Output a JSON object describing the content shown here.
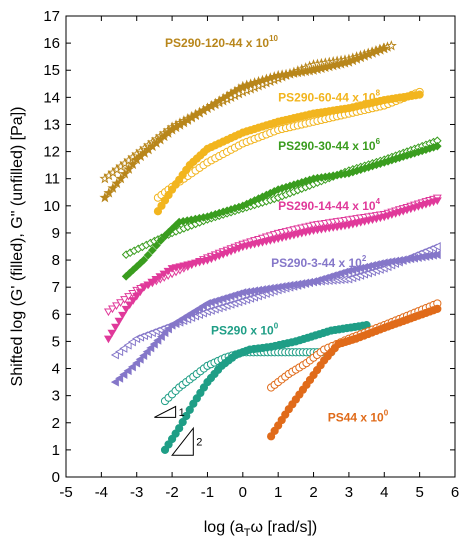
{
  "chart_data": {
    "type": "scatter",
    "xlabel_prefix": "log (a",
    "xlabel_sub": "T",
    "xlabel_suffix": "ω [rad/s])",
    "ylabel": "Shifted log (G' (filled), G\" (unfilled) [Pa])",
    "xlim": [
      -5,
      6
    ],
    "ylim": [
      0,
      17
    ],
    "x_ticks": [
      -5,
      -4,
      -3,
      -2,
      -1,
      0,
      1,
      2,
      3,
      4,
      5,
      6
    ],
    "y_ticks": [
      0,
      1,
      2,
      3,
      4,
      5,
      6,
      7,
      8,
      9,
      10,
      11,
      12,
      13,
      14,
      15,
      16,
      17
    ],
    "grid": false,
    "series": [
      {
        "name": "PS290-120-44",
        "factor_base": "x 10",
        "factor_exp": "10",
        "color": "#b8861b",
        "marker": "star",
        "label_x": -2.2,
        "label_y": 16.0,
        "gp": [
          [
            -3.9,
            10.3
          ],
          [
            -3.0,
            11.7
          ],
          [
            -2.0,
            12.8
          ],
          [
            -1.0,
            13.6
          ],
          [
            0.0,
            14.4
          ],
          [
            1.0,
            14.8
          ],
          [
            2.0,
            15.0
          ],
          [
            3.0,
            15.3
          ],
          [
            4.0,
            15.8
          ]
        ],
        "gpp": [
          [
            -3.9,
            11.0
          ],
          [
            -3.0,
            11.9
          ],
          [
            -2.0,
            12.9
          ],
          [
            -1.0,
            13.6
          ],
          [
            0.0,
            14.2
          ],
          [
            1.0,
            14.7
          ],
          [
            2.0,
            15.2
          ],
          [
            3.0,
            15.4
          ],
          [
            4.2,
            15.9
          ]
        ]
      },
      {
        "name": "PS290-60-44",
        "factor_base": "x 10",
        "factor_exp": "8",
        "color": "#f2b51f",
        "marker": "circle",
        "label_x": 1.0,
        "label_y": 14.0,
        "gp": [
          [
            -2.4,
            9.8
          ],
          [
            -2.0,
            10.6
          ],
          [
            -1.5,
            11.5
          ],
          [
            -1.0,
            12.1
          ],
          [
            0.0,
            12.7
          ],
          [
            1.0,
            13.1
          ],
          [
            2.0,
            13.4
          ],
          [
            3.0,
            13.6
          ],
          [
            4.0,
            13.9
          ],
          [
            5.0,
            14.1
          ]
        ],
        "gpp": [
          [
            -2.4,
            10.3
          ],
          [
            -2.0,
            10.7
          ],
          [
            -1.0,
            11.6
          ],
          [
            0.0,
            12.3
          ],
          [
            1.0,
            12.8
          ],
          [
            2.0,
            13.1
          ],
          [
            3.0,
            13.4
          ],
          [
            4.0,
            13.7
          ],
          [
            5.0,
            14.2
          ]
        ]
      },
      {
        "name": "PS290-30-44",
        "factor_base": "x 10",
        "factor_exp": "6",
        "color": "#3a9d1f",
        "marker": "diamond",
        "label_x": 1.0,
        "label_y": 12.2,
        "gp": [
          [
            -3.3,
            7.4
          ],
          [
            -2.8,
            8.0
          ],
          [
            -2.2,
            8.9
          ],
          [
            -1.8,
            9.4
          ],
          [
            -1.0,
            9.6
          ],
          [
            0.0,
            10.0
          ],
          [
            1.0,
            10.6
          ],
          [
            2.0,
            11.0
          ],
          [
            3.0,
            11.2
          ],
          [
            4.0,
            11.6
          ],
          [
            5.5,
            12.2
          ]
        ],
        "gpp": [
          [
            -3.3,
            8.2
          ],
          [
            -2.5,
            8.7
          ],
          [
            -2.0,
            9.0
          ],
          [
            -1.0,
            9.5
          ],
          [
            0.0,
            9.9
          ],
          [
            1.0,
            10.3
          ],
          [
            2.0,
            10.8
          ],
          [
            3.0,
            11.3
          ],
          [
            4.0,
            11.7
          ],
          [
            5.5,
            12.4
          ]
        ]
      },
      {
        "name": "PS290-14-44",
        "factor_base": "x 10",
        "factor_exp": "4",
        "color": "#e0399a",
        "marker": "triangle-down",
        "label_x": 1.0,
        "label_y": 10.0,
        "gp": [
          [
            -3.8,
            5.1
          ],
          [
            -3.3,
            6.2
          ],
          [
            -2.8,
            7.0
          ],
          [
            -2.0,
            7.7
          ],
          [
            -1.0,
            8.0
          ],
          [
            0.0,
            8.5
          ],
          [
            1.0,
            8.8
          ],
          [
            2.0,
            9.1
          ],
          [
            3.0,
            9.3
          ],
          [
            4.0,
            9.6
          ],
          [
            5.5,
            10.2
          ]
        ],
        "gpp": [
          [
            -3.8,
            6.1
          ],
          [
            -3.0,
            6.9
          ],
          [
            -2.0,
            7.5
          ],
          [
            -1.0,
            8.1
          ],
          [
            0.0,
            8.6
          ],
          [
            1.0,
            9.0
          ],
          [
            2.0,
            9.3
          ],
          [
            3.0,
            9.5
          ],
          [
            4.0,
            9.7
          ],
          [
            5.5,
            10.3
          ]
        ]
      },
      {
        "name": "PS290-3-44",
        "factor_base": "x 10",
        "factor_exp": "2",
        "color": "#8577c9",
        "marker": "triangle-left",
        "label_x": 0.8,
        "label_y": 7.9,
        "gp": [
          [
            -3.6,
            3.5
          ],
          [
            -3.0,
            4.2
          ],
          [
            -2.5,
            4.9
          ],
          [
            -2.0,
            5.6
          ],
          [
            -1.0,
            6.4
          ],
          [
            0.0,
            6.8
          ],
          [
            1.0,
            7.0
          ],
          [
            2.0,
            7.2
          ],
          [
            3.0,
            7.6
          ],
          [
            4.0,
            7.9
          ],
          [
            5.5,
            8.2
          ]
        ],
        "gpp": [
          [
            -3.6,
            4.5
          ],
          [
            -3.0,
            5.1
          ],
          [
            -2.0,
            5.6
          ],
          [
            -1.0,
            6.1
          ],
          [
            0.0,
            6.5
          ],
          [
            1.0,
            6.9
          ],
          [
            2.0,
            7.2
          ],
          [
            3.0,
            7.3
          ],
          [
            4.0,
            7.7
          ],
          [
            5.5,
            8.5
          ]
        ]
      },
      {
        "name": "PS290",
        "factor_base": "x 10",
        "factor_exp": "0",
        "color": "#1f9e86",
        "marker": "circle",
        "label_x": -0.9,
        "label_y": 5.4,
        "gp": [
          [
            -2.2,
            1.0
          ],
          [
            -1.8,
            1.8
          ],
          [
            -1.4,
            2.7
          ],
          [
            -1.0,
            3.5
          ],
          [
            -0.6,
            4.1
          ],
          [
            -0.2,
            4.5
          ],
          [
            0.2,
            4.7
          ],
          [
            0.8,
            4.8
          ],
          [
            1.5,
            5.0
          ],
          [
            2.5,
            5.4
          ],
          [
            3.5,
            5.6
          ]
        ],
        "gpp": [
          [
            -2.2,
            2.8
          ],
          [
            -1.8,
            3.3
          ],
          [
            -1.4,
            3.7
          ],
          [
            -1.0,
            4.1
          ],
          [
            -0.5,
            4.4
          ],
          [
            0.0,
            4.6
          ],
          [
            0.5,
            4.6
          ],
          [
            1.0,
            4.6
          ],
          [
            1.5,
            4.6
          ],
          [
            2.0,
            4.6
          ],
          [
            2.5,
            4.6
          ]
        ]
      },
      {
        "name": "PS44",
        "factor_base": "x 10",
        "factor_exp": "0",
        "color": "#e06b1a",
        "marker": "circle",
        "label_x": 2.4,
        "label_y": 2.2,
        "gp": [
          [
            0.8,
            1.5
          ],
          [
            1.3,
            2.5
          ],
          [
            1.8,
            3.4
          ],
          [
            2.3,
            4.3
          ],
          [
            2.7,
            4.9
          ],
          [
            3.2,
            5.1
          ],
          [
            4.0,
            5.5
          ],
          [
            5.5,
            6.2
          ]
        ],
        "gpp": [
          [
            0.8,
            3.3
          ],
          [
            1.3,
            3.8
          ],
          [
            1.8,
            4.2
          ],
          [
            2.3,
            4.7
          ],
          [
            3.0,
            5.1
          ],
          [
            4.0,
            5.6
          ],
          [
            5.5,
            6.4
          ]
        ]
      }
    ],
    "slope_markers": [
      {
        "label": "1",
        "x0": -2.5,
        "y0": 2.2,
        "x1": -1.9,
        "y1": 2.6
      },
      {
        "label": "2",
        "x0": -2.0,
        "y0": 0.8,
        "x1": -1.4,
        "y1": 1.8
      }
    ]
  }
}
